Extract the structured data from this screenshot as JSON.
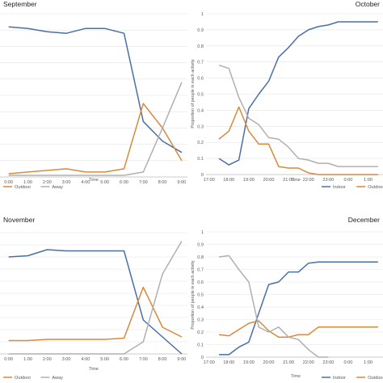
{
  "chart_data": [
    {
      "type": "line",
      "title": "September",
      "xlabel": "Time",
      "ylabel": "",
      "ylim": [
        0,
        1
      ],
      "grid": true,
      "x": [
        "0:00",
        "1:00",
        "2:00",
        "3:00",
        "4:00",
        "5:00",
        "6:00",
        "7:00",
        "8:00",
        "9:00"
      ],
      "yticks": [],
      "series": [
        {
          "name": "",
          "color": "#4a6fa5",
          "values": [
            0.92,
            0.91,
            0.89,
            0.88,
            0.91,
            0.91,
            0.88,
            0.34,
            0.22,
            0.15
          ]
        },
        {
          "name": "Outdoor",
          "color": "#d9893b",
          "values": [
            0.02,
            0.03,
            0.04,
            0.05,
            0.03,
            0.03,
            0.05,
            0.45,
            0.3,
            0.1
          ]
        },
        {
          "name": "Away",
          "color": "#b0b0b0",
          "values": [
            0.01,
            0.01,
            0.01,
            0.01,
            0.01,
            0.01,
            0.01,
            0.03,
            0.3,
            0.58
          ]
        }
      ],
      "legend": {
        "placement": "bottom",
        "entries": [
          "Outdoor",
          "Away"
        ]
      }
    },
    {
      "type": "line",
      "title": "October",
      "xlabel": "Time",
      "ylabel": "Proportion of people in each activity",
      "ylim": [
        0,
        1
      ],
      "grid": true,
      "x": [
        "17:00",
        "18:00",
        "19:00",
        "20:00",
        "21:00",
        "22:00",
        "23:00",
        "0:00",
        "1:00"
      ],
      "yticks": [
        "0",
        "0.1",
        "0.2",
        "0.3",
        "0.4",
        "0.5",
        "0.6",
        "0.7",
        "0.8",
        "0.9",
        "1"
      ],
      "series": [
        {
          "name": "Indoor",
          "color": "#4a6fa5",
          "x": [
            17.5,
            18,
            18.5,
            19,
            19.5,
            20,
            20.5,
            21,
            21.5,
            22,
            22.5,
            23,
            23.5,
            24,
            24.5,
            25,
            25.5
          ],
          "values": [
            0.1,
            0.06,
            0.09,
            0.41,
            0.5,
            0.58,
            0.73,
            0.79,
            0.86,
            0.9,
            0.92,
            0.93,
            0.95,
            0.95,
            0.95,
            0.95,
            0.95
          ]
        },
        {
          "name": "Outdoor",
          "color": "#d9893b",
          "x": [
            17.5,
            18,
            18.5,
            19,
            19.5,
            20,
            20.5,
            21,
            21.5,
            22,
            22.5,
            23,
            23.5,
            24,
            24.5,
            25,
            25.5
          ],
          "values": [
            0.22,
            0.27,
            0.42,
            0.27,
            0.19,
            0.19,
            0.05,
            0.04,
            0.04,
            0.01,
            0.0,
            0.0,
            0.0,
            0.0,
            0.0,
            0.0,
            0.0
          ]
        },
        {
          "name": "Away",
          "color": "#b0b0b0",
          "x": [
            17.5,
            18,
            18.5,
            19,
            19.5,
            20,
            20.5,
            21,
            21.5,
            22,
            22.5,
            23,
            23.5,
            24,
            24.5,
            25,
            25.5
          ],
          "values": [
            0.68,
            0.66,
            0.48,
            0.35,
            0.31,
            0.23,
            0.22,
            0.17,
            0.1,
            0.09,
            0.07,
            0.07,
            0.05,
            0.05,
            0.05,
            0.05,
            0.05
          ]
        }
      ],
      "legend": {
        "placement": "bottom",
        "entries": [
          "Indoor",
          "Outdoor"
        ]
      }
    },
    {
      "type": "line",
      "title": "November",
      "xlabel": "Time",
      "ylabel": "",
      "ylim": [
        0,
        1
      ],
      "grid": true,
      "x": [
        "0:00",
        "1:00",
        "2:00",
        "3:00",
        "4:00",
        "5:00",
        "6:00",
        "7:00",
        "8:00",
        "9:00"
      ],
      "yticks": [],
      "series": [
        {
          "name": "",
          "color": "#4a6fa5",
          "values": [
            0.8,
            0.81,
            0.86,
            0.85,
            0.85,
            0.85,
            0.85,
            0.28,
            0.14,
            0.0
          ]
        },
        {
          "name": "Outdoor",
          "color": "#d9893b",
          "values": [
            0.11,
            0.11,
            0.12,
            0.12,
            0.12,
            0.12,
            0.13,
            0.55,
            0.22,
            0.14
          ]
        },
        {
          "name": "Away",
          "color": "#b0b0b0",
          "values": [
            0.0,
            0.0,
            0.0,
            0.0,
            0.0,
            0.0,
            0.0,
            0.1,
            0.66,
            0.93
          ]
        }
      ],
      "legend": {
        "placement": "bottom",
        "entries": [
          "Outdoor",
          "Away"
        ]
      }
    },
    {
      "type": "line",
      "title": "December",
      "xlabel": "Time",
      "ylabel": "Proportion of people in each activity",
      "ylim": [
        0,
        1
      ],
      "grid": true,
      "x": [
        "17:00",
        "18:00",
        "19:00",
        "20:00",
        "21:00",
        "22:00",
        "23:00",
        "0:00",
        "1:00"
      ],
      "yticks": [
        "0",
        "0.1",
        "0.2",
        "0.3",
        "0.4",
        "0.5",
        "0.6",
        "0.7",
        "0.8",
        "0.9",
        "1"
      ],
      "series": [
        {
          "name": "Indoor",
          "color": "#4a6fa5",
          "x": [
            17.5,
            18,
            18.5,
            19,
            19.5,
            20,
            20.5,
            21,
            21.5,
            22,
            22.5,
            23,
            23.5,
            24,
            24.5,
            25,
            25.5
          ],
          "values": [
            0.02,
            0.02,
            0.08,
            0.12,
            0.35,
            0.58,
            0.6,
            0.68,
            0.68,
            0.75,
            0.76,
            0.76,
            0.76,
            0.76,
            0.76,
            0.76,
            0.76
          ]
        },
        {
          "name": "Outdoor",
          "color": "#d9893b",
          "x": [
            17.5,
            18,
            18.5,
            19,
            19.5,
            20,
            20.5,
            21,
            21.5,
            22,
            22.5,
            23,
            23.5,
            24,
            24.5,
            25,
            25.5
          ],
          "values": [
            0.18,
            0.17,
            0.22,
            0.27,
            0.29,
            0.21,
            0.16,
            0.16,
            0.18,
            0.18,
            0.24,
            0.24,
            0.24,
            0.24,
            0.24,
            0.24,
            0.24
          ]
        },
        {
          "name": "Away",
          "color": "#b0b0b0",
          "x": [
            17.5,
            18,
            18.5,
            19,
            19.5,
            20,
            20.5,
            21,
            21.5,
            22,
            22.5,
            23
          ],
          "values": [
            0.8,
            0.81,
            0.7,
            0.6,
            0.24,
            0.2,
            0.24,
            0.16,
            0.14,
            0.06,
            0.0,
            0.0
          ]
        }
      ],
      "legend": {
        "placement": "bottom",
        "entries": [
          "Indoor",
          "Outdoor"
        ]
      }
    }
  ]
}
